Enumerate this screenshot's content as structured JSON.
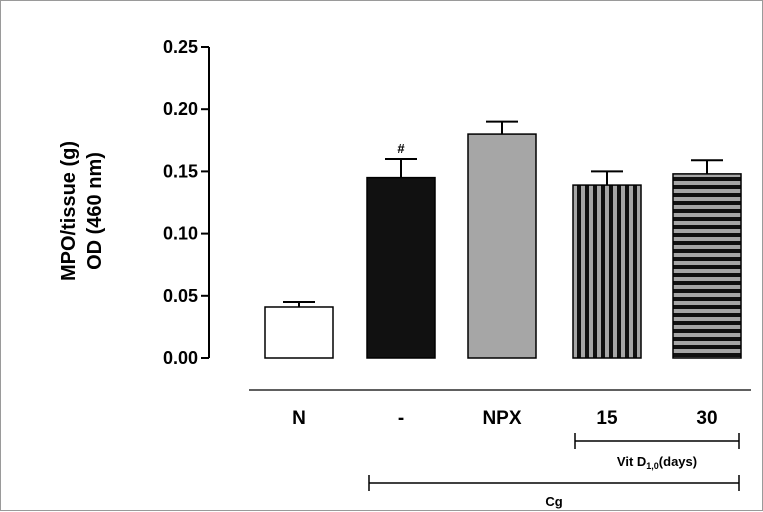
{
  "chart_data": {
    "type": "bar",
    "categories": [
      "N",
      "-",
      "NPX",
      "15",
      "30"
    ],
    "values": [
      0.041,
      0.145,
      0.18,
      0.139,
      0.148
    ],
    "errors": [
      0.004,
      0.015,
      0.01,
      0.011,
      0.011
    ],
    "annotations": [
      "",
      "#",
      "",
      "",
      ""
    ],
    "fills": [
      "white",
      "black",
      "gray",
      "vertical-stripes",
      "horizontal-stripes"
    ],
    "ylabel_line1": "MPO/tissue (g)",
    "ylabel_line2": "OD (460 nm)",
    "ylim": [
      0,
      0.25
    ],
    "yticks": [
      "0.00",
      "0.05",
      "0.10",
      "0.15",
      "0.20",
      "0.25"
    ],
    "group_brackets": [
      {
        "label_main": "Vit D",
        "label_sub": "1,0",
        "label_tail": "(days)",
        "from": 3,
        "to": 4
      },
      {
        "label_main": "Cg",
        "label_sub": "",
        "label_tail": "",
        "from": 1,
        "to": 4
      }
    ],
    "colors": {
      "gray_fill": "#a6a6a6",
      "black_fill": "#111111",
      "stroke": "#000000"
    }
  }
}
